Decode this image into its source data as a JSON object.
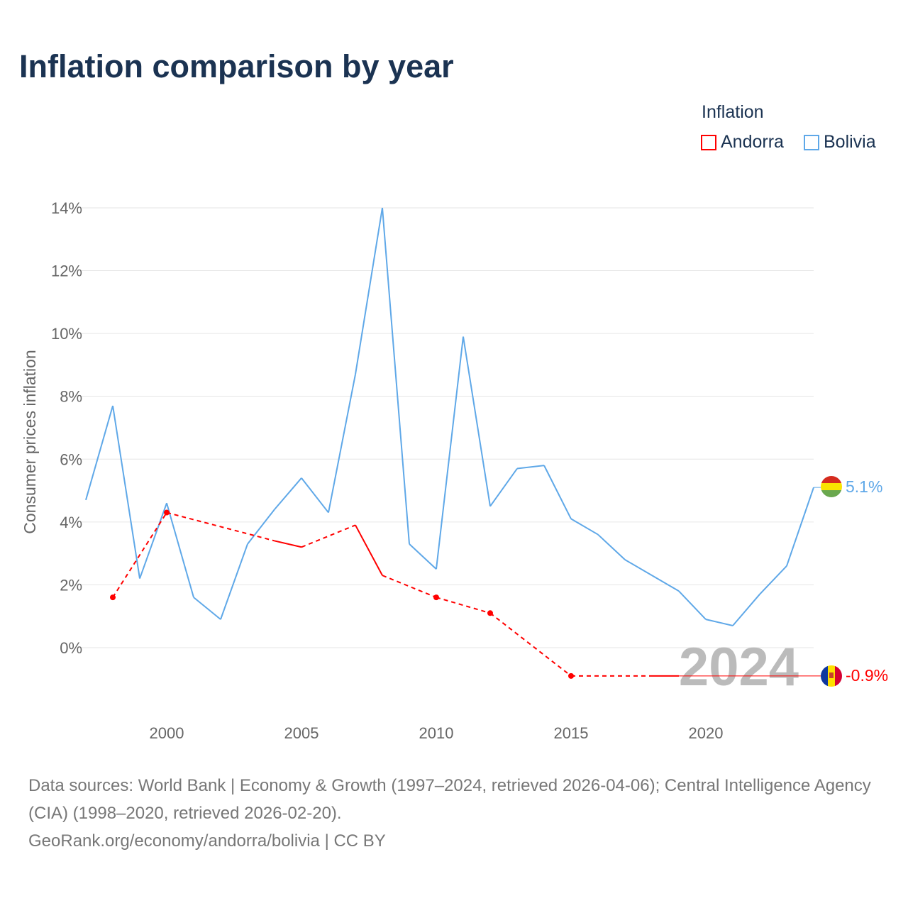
{
  "title": "Inflation comparison by year",
  "legend": {
    "title": "Inflation",
    "items": [
      {
        "name": "Andorra",
        "color": "#ff0000"
      },
      {
        "name": "Bolivia",
        "color": "#5fa8e8"
      }
    ]
  },
  "chart_data": {
    "type": "line",
    "ylabel": "Consumer prices inflation",
    "ylim": [
      -2,
      14
    ],
    "yticks": [
      "0%",
      "2%",
      "4%",
      "6%",
      "8%",
      "10%",
      "12%",
      "14%"
    ],
    "ytick_values": [
      0,
      2,
      4,
      6,
      8,
      10,
      12,
      14
    ],
    "xticks": [
      "2000",
      "2005",
      "2010",
      "2015",
      "2020"
    ],
    "xtick_values": [
      2000,
      2005,
      2010,
      2015,
      2020
    ],
    "xlim": [
      1997,
      2024
    ],
    "watermark_year": "2024",
    "series": [
      {
        "name": "Bolivia",
        "color": "#5fa8e8",
        "end_label": "5.1%",
        "x": [
          1997,
          1998,
          1999,
          2000,
          2001,
          2002,
          2003,
          2004,
          2005,
          2006,
          2007,
          2008,
          2009,
          2010,
          2011,
          2012,
          2013,
          2014,
          2015,
          2016,
          2017,
          2018,
          2019,
          2020,
          2021,
          2022,
          2023,
          2024
        ],
        "values": [
          4.7,
          7.7,
          2.2,
          4.6,
          1.6,
          0.9,
          3.3,
          4.4,
          5.4,
          4.3,
          8.7,
          14.0,
          3.3,
          2.5,
          9.9,
          4.5,
          5.7,
          5.8,
          4.1,
          3.6,
          2.8,
          2.3,
          1.8,
          0.9,
          0.7,
          1.7,
          2.6,
          5.1
        ]
      },
      {
        "name": "Andorra",
        "color": "#ff0000",
        "end_label": "-0.9%",
        "x": [
          1998,
          2000,
          2004,
          2005,
          2007,
          2008,
          2010,
          2012,
          2015,
          2018,
          2019
        ],
        "values": [
          1.6,
          4.3,
          3.4,
          3.2,
          3.9,
          2.3,
          1.6,
          1.1,
          -0.9,
          -0.9,
          -0.9
        ]
      }
    ]
  },
  "footer": {
    "sources": "Data sources: World Bank | Economy & Growth (1997–2024, retrieved 2026-04-06); Central Intelligence Agency (CIA) (1998–2020, retrieved 2026-02-20).",
    "credit": "GeoRank.org/economy/andorra/bolivia | CC BY"
  }
}
